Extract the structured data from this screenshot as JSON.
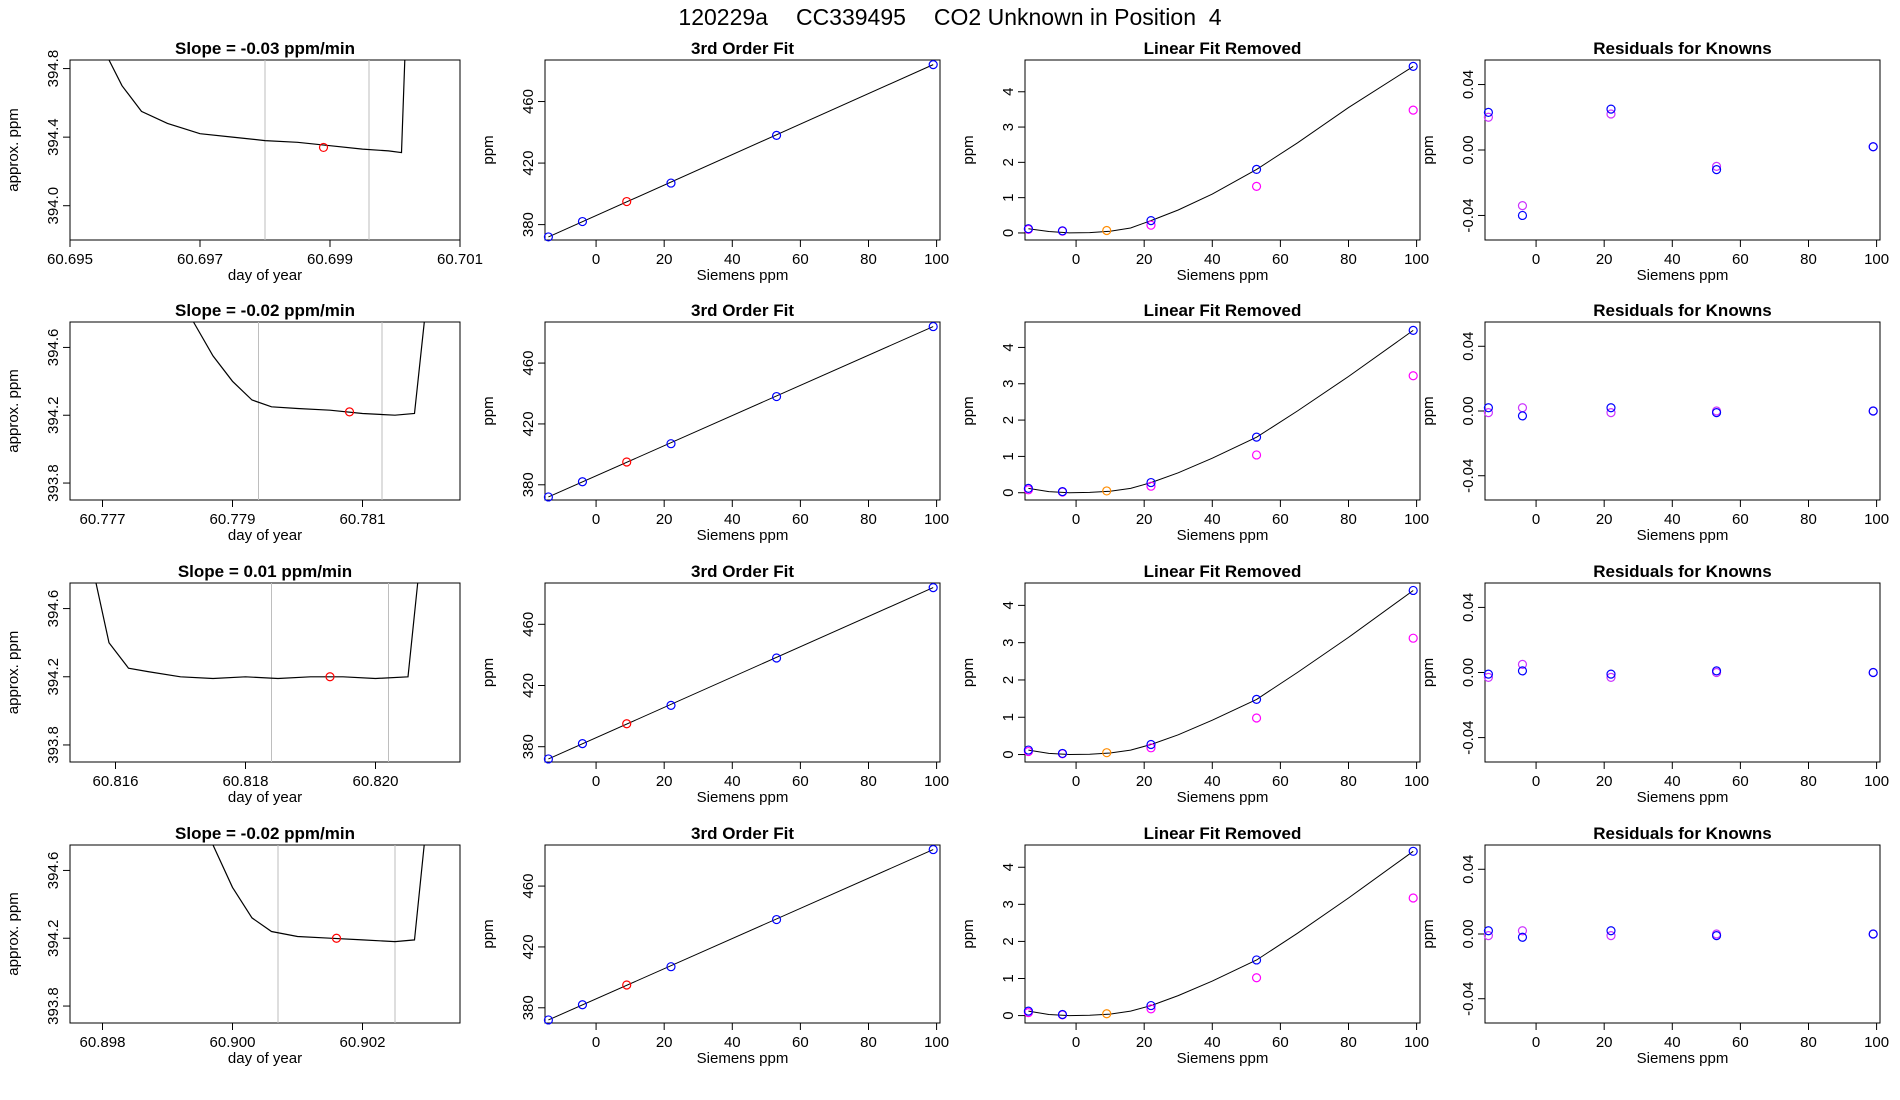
{
  "header": {
    "run_id": "120229a",
    "cylinder": "CC339495",
    "description": "CO2 Unknown in Position  4"
  },
  "colors": {
    "trace": "#000000",
    "known_points": "#0000ff",
    "unknown_point": "#ff0000",
    "unknown_point_linear": "#ff8c00",
    "linear_residual_points": "#ff00ff",
    "residual_points_a": "#0000ff",
    "residual_points_b": "#cc33ff",
    "window_lines": "#bebebe"
  },
  "chart_data": [
    {
      "panel": "r1-trace",
      "type": "line",
      "title": "Slope =  -0.03  ppm/min",
      "xlabel": "day of year",
      "ylabel": "approx. ppm",
      "xlim": [
        60.695,
        60.701
      ],
      "xticks": [
        "60.695",
        "60.697",
        "60.699",
        "60.701"
      ],
      "ylim": [
        393.8,
        394.85
      ],
      "yticks": [
        "394.0",
        "394.4",
        "394.8"
      ],
      "window": [
        60.698,
        60.6996
      ],
      "marker": {
        "x": 60.6989,
        "y": 394.34
      },
      "trace": [
        [
          60.6956,
          395.2
        ],
        [
          60.6958,
          394.7
        ],
        [
          60.6961,
          394.55
        ],
        [
          60.6965,
          394.48
        ],
        [
          60.697,
          394.42
        ],
        [
          60.6975,
          394.4
        ],
        [
          60.698,
          394.38
        ],
        [
          60.6985,
          394.37
        ],
        [
          60.699,
          394.35
        ],
        [
          60.6995,
          394.33
        ],
        [
          60.6999,
          394.32
        ],
        [
          60.7001,
          394.31
        ],
        [
          60.70015,
          395.2
        ]
      ]
    },
    {
      "panel": "r1-fit",
      "type": "scatter",
      "title": "3rd Order Fit",
      "xlabel": "Siemens ppm",
      "ylabel": "ppm",
      "xlim": [
        -15,
        101
      ],
      "xticks": [
        0,
        20,
        40,
        60,
        80,
        100
      ],
      "ylim": [
        370,
        487
      ],
      "yticks": [
        380,
        420,
        460
      ],
      "known": [
        [
          -14,
          372
        ],
        [
          -4,
          382
        ],
        [
          22,
          407
        ],
        [
          53,
          438
        ],
        [
          99,
          484
        ]
      ],
      "unknown": [
        [
          9,
          395
        ]
      ],
      "line": [
        [
          -14,
          372
        ],
        [
          99,
          484
        ]
      ]
    },
    {
      "panel": "r1-linear",
      "type": "scatter",
      "title": "Linear Fit Removed",
      "xlabel": "Siemens ppm",
      "ylabel": "ppm",
      "xlim": [
        -15,
        101
      ],
      "xticks": [
        0,
        20,
        40,
        60,
        80,
        100
      ],
      "ylim": [
        -0.2,
        4.9
      ],
      "yticks": [
        0,
        1,
        2,
        3,
        4
      ],
      "known": [
        [
          -14,
          0.12
        ],
        [
          -4,
          0.06
        ],
        [
          22,
          0.35
        ],
        [
          53,
          1.8
        ],
        [
          99,
          4.72
        ]
      ],
      "other": [
        [
          -14,
          0.1
        ],
        [
          -4,
          0.05
        ],
        [
          22,
          0.22
        ],
        [
          53,
          1.32
        ],
        [
          99,
          3.48
        ]
      ],
      "unknown": [
        [
          9,
          0.07
        ]
      ],
      "curve": [
        [
          -14,
          0.12
        ],
        [
          -8,
          0.04
        ],
        [
          -2,
          0.0
        ],
        [
          4,
          0.01
        ],
        [
          10,
          0.05
        ],
        [
          16,
          0.14
        ],
        [
          22,
          0.35
        ],
        [
          30,
          0.65
        ],
        [
          40,
          1.1
        ],
        [
          53,
          1.8
        ],
        [
          65,
          2.55
        ],
        [
          80,
          3.55
        ],
        [
          99,
          4.72
        ]
      ]
    },
    {
      "panel": "r1-resid",
      "type": "scatter",
      "title": "Residuals for Knowns",
      "xlabel": "Siemens ppm",
      "ylabel": "ppm",
      "xlim": [
        -15,
        101
      ],
      "xticks": [
        0,
        20,
        40,
        60,
        80,
        100
      ],
      "ylim": [
        -0.055,
        0.055
      ],
      "yticks": [
        "-0.04",
        "0.00",
        "0.04"
      ],
      "a": [
        [
          -14,
          0.023
        ],
        [
          -4,
          -0.04
        ],
        [
          22,
          0.025
        ],
        [
          53,
          -0.012
        ],
        [
          99,
          0.002
        ]
      ],
      "b": [
        [
          -14,
          0.02
        ],
        [
          -4,
          -0.034
        ],
        [
          22,
          0.022
        ],
        [
          53,
          -0.01
        ],
        [
          99,
          0.002
        ]
      ]
    },
    {
      "panel": "r2-trace",
      "type": "line",
      "title": "Slope =  -0.02  ppm/min",
      "xlabel": "day of year",
      "ylabel": "approx. ppm",
      "xlim": [
        60.7765,
        60.7825
      ],
      "xticks": [
        "60.777",
        "60.779",
        "60.781"
      ],
      "ylim": [
        393.7,
        394.75
      ],
      "yticks": [
        "393.8",
        "394.2",
        "394.6"
      ],
      "window": [
        60.7794,
        60.7813
      ],
      "marker": {
        "x": 60.7808,
        "y": 394.22
      },
      "trace": [
        [
          60.7784,
          394.75
        ],
        [
          60.7787,
          394.55
        ],
        [
          60.779,
          394.4
        ],
        [
          60.7793,
          394.29
        ],
        [
          60.7796,
          394.25
        ],
        [
          60.78,
          394.24
        ],
        [
          60.7805,
          394.23
        ],
        [
          60.781,
          394.21
        ],
        [
          60.7815,
          394.2
        ],
        [
          60.7818,
          394.21
        ],
        [
          60.78195,
          394.75
        ]
      ]
    },
    {
      "panel": "r2-fit",
      "type": "scatter",
      "title": "3rd Order Fit",
      "xlabel": "Siemens ppm",
      "ylabel": "ppm",
      "xlim": [
        -15,
        101
      ],
      "xticks": [
        0,
        20,
        40,
        60,
        80,
        100
      ],
      "ylim": [
        370,
        487
      ],
      "yticks": [
        380,
        420,
        460
      ],
      "known": [
        [
          -14,
          372
        ],
        [
          -4,
          382
        ],
        [
          22,
          407
        ],
        [
          53,
          438
        ],
        [
          99,
          484
        ]
      ],
      "unknown": [
        [
          9,
          395
        ]
      ],
      "line": [
        [
          -14,
          372
        ],
        [
          99,
          484
        ]
      ]
    },
    {
      "panel": "r2-linear",
      "type": "scatter",
      "title": "Linear Fit Removed",
      "xlabel": "Siemens ppm",
      "ylabel": "ppm",
      "xlim": [
        -15,
        101
      ],
      "xticks": [
        0,
        20,
        40,
        60,
        80,
        100
      ],
      "ylim": [
        -0.2,
        4.7
      ],
      "yticks": [
        0,
        1,
        2,
        3,
        4
      ],
      "known": [
        [
          -14,
          0.12
        ],
        [
          -4,
          0.03
        ],
        [
          22,
          0.28
        ],
        [
          53,
          1.53
        ],
        [
          99,
          4.47
        ]
      ],
      "other": [
        [
          -14,
          0.08
        ],
        [
          -4,
          0.02
        ],
        [
          22,
          0.18
        ],
        [
          53,
          1.04
        ],
        [
          99,
          3.22
        ]
      ],
      "unknown": [
        [
          9,
          0.05
        ]
      ],
      "curve": [
        [
          -14,
          0.12
        ],
        [
          -8,
          0.03
        ],
        [
          -2,
          0.0
        ],
        [
          4,
          0.01
        ],
        [
          10,
          0.04
        ],
        [
          16,
          0.12
        ],
        [
          22,
          0.28
        ],
        [
          30,
          0.55
        ],
        [
          40,
          0.95
        ],
        [
          53,
          1.53
        ],
        [
          65,
          2.25
        ],
        [
          80,
          3.2
        ],
        [
          99,
          4.47
        ]
      ]
    },
    {
      "panel": "r2-resid",
      "type": "scatter",
      "title": "Residuals for Knowns",
      "xlabel": "Siemens ppm",
      "ylabel": "ppm",
      "xlim": [
        -15,
        101
      ],
      "xticks": [
        0,
        20,
        40,
        60,
        80,
        100
      ],
      "ylim": [
        -0.055,
        0.055
      ],
      "yticks": [
        "-0.04",
        "0.00",
        "0.04"
      ],
      "a": [
        [
          -14,
          0.002
        ],
        [
          -4,
          -0.003
        ],
        [
          22,
          0.002
        ],
        [
          53,
          -0.001
        ],
        [
          99,
          0.0
        ]
      ],
      "b": [
        [
          -14,
          -0.001
        ],
        [
          -4,
          0.002
        ],
        [
          22,
          -0.001
        ],
        [
          53,
          0.0
        ],
        [
          99,
          0.0
        ]
      ]
    },
    {
      "panel": "r3-trace",
      "type": "line",
      "title": "Slope =  0.01  ppm/min",
      "xlabel": "day of year",
      "ylabel": "approx. ppm",
      "xlim": [
        60.8153,
        60.8213
      ],
      "xticks": [
        "60.816",
        "60.818",
        "60.820"
      ],
      "ylim": [
        393.7,
        394.75
      ],
      "yticks": [
        "393.8",
        "394.2",
        "394.6"
      ],
      "window": [
        60.8184,
        60.8202
      ],
      "marker": {
        "x": 60.8193,
        "y": 394.2
      },
      "trace": [
        [
          60.8157,
          394.75
        ],
        [
          60.8159,
          394.4
        ],
        [
          60.8162,
          394.25
        ],
        [
          60.8165,
          394.23
        ],
        [
          60.817,
          394.2
        ],
        [
          60.8175,
          394.19
        ],
        [
          60.818,
          394.2
        ],
        [
          60.8185,
          394.19
        ],
        [
          60.819,
          394.2
        ],
        [
          60.8195,
          394.2
        ],
        [
          60.82,
          394.19
        ],
        [
          60.8205,
          394.2
        ],
        [
          60.82065,
          394.75
        ]
      ]
    },
    {
      "panel": "r3-fit",
      "type": "scatter",
      "title": "3rd Order Fit",
      "xlabel": "Siemens ppm",
      "ylabel": "ppm",
      "xlim": [
        -15,
        101
      ],
      "xticks": [
        0,
        20,
        40,
        60,
        80,
        100
      ],
      "ylim": [
        370,
        487
      ],
      "yticks": [
        380,
        420,
        460
      ],
      "known": [
        [
          -14,
          372
        ],
        [
          -4,
          382
        ],
        [
          22,
          407
        ],
        [
          53,
          438
        ],
        [
          99,
          484
        ]
      ],
      "unknown": [
        [
          9,
          395
        ]
      ],
      "line": [
        [
          -14,
          372
        ],
        [
          99,
          484
        ]
      ]
    },
    {
      "panel": "r3-linear",
      "type": "scatter",
      "title": "Linear Fit Removed",
      "xlabel": "Siemens ppm",
      "ylabel": "ppm",
      "xlim": [
        -15,
        101
      ],
      "xticks": [
        0,
        20,
        40,
        60,
        80,
        100
      ],
      "ylim": [
        -0.2,
        4.6
      ],
      "yticks": [
        0,
        1,
        2,
        3,
        4
      ],
      "known": [
        [
          -14,
          0.12
        ],
        [
          -4,
          0.03
        ],
        [
          22,
          0.27
        ],
        [
          53,
          1.48
        ],
        [
          99,
          4.4
        ]
      ],
      "other": [
        [
          -14,
          0.08
        ],
        [
          -4,
          0.02
        ],
        [
          22,
          0.18
        ],
        [
          53,
          0.98
        ],
        [
          99,
          3.12
        ]
      ],
      "unknown": [
        [
          9,
          0.05
        ]
      ],
      "curve": [
        [
          -14,
          0.12
        ],
        [
          -8,
          0.03
        ],
        [
          -2,
          0.0
        ],
        [
          4,
          0.01
        ],
        [
          10,
          0.04
        ],
        [
          16,
          0.12
        ],
        [
          22,
          0.27
        ],
        [
          30,
          0.53
        ],
        [
          40,
          0.92
        ],
        [
          53,
          1.48
        ],
        [
          65,
          2.2
        ],
        [
          80,
          3.14
        ],
        [
          99,
          4.4
        ]
      ]
    },
    {
      "panel": "r3-resid",
      "type": "scatter",
      "title": "Residuals for Knowns",
      "xlabel": "Siemens ppm",
      "ylabel": "ppm",
      "xlim": [
        -15,
        101
      ],
      "xticks": [
        0,
        20,
        40,
        60,
        80,
        100
      ],
      "ylim": [
        -0.055,
        0.055
      ],
      "yticks": [
        "0.04",
        "0.00",
        "-0.04"
      ],
      "a": [
        [
          -14,
          -0.001
        ],
        [
          -4,
          0.001
        ],
        [
          22,
          -0.001
        ],
        [
          53,
          0.001
        ],
        [
          99,
          0.0
        ]
      ],
      "b": [
        [
          -14,
          -0.003
        ],
        [
          -4,
          0.005
        ],
        [
          22,
          -0.003
        ],
        [
          53,
          0.0
        ],
        [
          99,
          0.0
        ]
      ]
    },
    {
      "panel": "r4-trace",
      "type": "line",
      "title": "Slope =  -0.02  ppm/min",
      "xlabel": "day of year",
      "ylabel": "approx. ppm",
      "xlim": [
        60.8975,
        60.9035
      ],
      "xticks": [
        "60.898",
        "60.900",
        "60.902"
      ],
      "ylim": [
        393.7,
        394.75
      ],
      "yticks": [
        "393.8",
        "394.2",
        "394.6"
      ],
      "window": [
        60.9007,
        60.9025
      ],
      "marker": {
        "x": 60.9016,
        "y": 394.2
      },
      "trace": [
        [
          60.8997,
          394.75
        ],
        [
          60.9,
          394.5
        ],
        [
          60.9003,
          394.32
        ],
        [
          60.9006,
          394.24
        ],
        [
          60.901,
          394.21
        ],
        [
          60.9015,
          394.2
        ],
        [
          60.902,
          394.19
        ],
        [
          60.9025,
          394.18
        ],
        [
          60.9028,
          394.19
        ],
        [
          60.90295,
          394.75
        ]
      ]
    },
    {
      "panel": "r4-fit",
      "type": "scatter",
      "title": "3rd Order Fit",
      "xlabel": "Siemens ppm",
      "ylabel": "ppm",
      "xlim": [
        -15,
        101
      ],
      "xticks": [
        0,
        20,
        40,
        60,
        80,
        100
      ],
      "ylim": [
        370,
        487
      ],
      "yticks": [
        380,
        420,
        460
      ],
      "known": [
        [
          -14,
          372
        ],
        [
          -4,
          382
        ],
        [
          22,
          407
        ],
        [
          53,
          438
        ],
        [
          99,
          484
        ]
      ],
      "unknown": [
        [
          9,
          395
        ]
      ],
      "line": [
        [
          -14,
          372
        ],
        [
          99,
          484
        ]
      ]
    },
    {
      "panel": "r4-linear",
      "type": "scatter",
      "title": "Linear Fit Removed",
      "xlabel": "Siemens ppm",
      "ylabel": "ppm",
      "xlim": [
        -15,
        101
      ],
      "xticks": [
        0,
        20,
        40,
        60,
        80,
        100
      ],
      "ylim": [
        -0.2,
        4.6
      ],
      "yticks": [
        0,
        1,
        2,
        3,
        4
      ],
      "known": [
        [
          -14,
          0.12
        ],
        [
          -4,
          0.03
        ],
        [
          22,
          0.27
        ],
        [
          53,
          1.5
        ],
        [
          99,
          4.43
        ]
      ],
      "other": [
        [
          -14,
          0.08
        ],
        [
          -4,
          0.02
        ],
        [
          22,
          0.18
        ],
        [
          53,
          1.02
        ],
        [
          99,
          3.17
        ]
      ],
      "unknown": [
        [
          9,
          0.05
        ]
      ],
      "curve": [
        [
          -14,
          0.12
        ],
        [
          -8,
          0.03
        ],
        [
          -2,
          0.0
        ],
        [
          4,
          0.01
        ],
        [
          10,
          0.04
        ],
        [
          16,
          0.12
        ],
        [
          22,
          0.27
        ],
        [
          30,
          0.54
        ],
        [
          40,
          0.93
        ],
        [
          53,
          1.5
        ],
        [
          65,
          2.22
        ],
        [
          80,
          3.17
        ],
        [
          99,
          4.43
        ]
      ]
    },
    {
      "panel": "r4-resid",
      "type": "scatter",
      "title": "Residuals for Knowns",
      "xlabel": "Siemens ppm",
      "ylabel": "ppm",
      "xlim": [
        -15,
        101
      ],
      "xticks": [
        0,
        20,
        40,
        60,
        80,
        100
      ],
      "ylim": [
        -0.055,
        0.055
      ],
      "yticks": [
        "-0.04",
        "0.00",
        "0.04"
      ],
      "a": [
        [
          -14,
          0.002
        ],
        [
          -4,
          -0.002
        ],
        [
          22,
          0.002
        ],
        [
          53,
          -0.001
        ],
        [
          99,
          0.0
        ]
      ],
      "b": [
        [
          -14,
          -0.001
        ],
        [
          -4,
          0.002
        ],
        [
          22,
          -0.001
        ],
        [
          53,
          0.0
        ],
        [
          99,
          0.0
        ]
      ]
    }
  ]
}
